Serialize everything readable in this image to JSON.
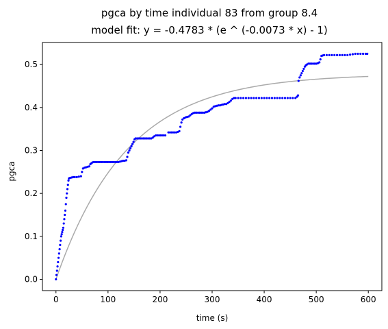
{
  "chart_data": {
    "type": "scatter",
    "title": "pgca by time individual 83 from group 8.4",
    "subtitle": "model fit: y = -0.4783 * (e ^ (-0.0073 * x) - 1)",
    "xlabel": "time (s)",
    "ylabel": "pgca",
    "xlim": [
      -26,
      626
    ],
    "ylim": [
      -0.0263,
      0.5513
    ],
    "xticks": [
      0,
      100,
      200,
      300,
      400,
      500,
      600
    ],
    "yticks": [
      0.0,
      0.1,
      0.2,
      0.3,
      0.4,
      0.5
    ],
    "xtick_labels": [
      "0",
      "100",
      "200",
      "300",
      "400",
      "500",
      "600"
    ],
    "ytick_labels": [
      "0.0",
      "0.1",
      "0.2",
      "0.3",
      "0.4",
      "0.5"
    ],
    "grid": false,
    "legend": "none",
    "series": [
      {
        "kind": "scatter",
        "color": "#0000ff",
        "points": [
          [
            0,
            0.0
          ],
          [
            1,
            0.01
          ],
          [
            2,
            0.02
          ],
          [
            3,
            0.03
          ],
          [
            4,
            0.04
          ],
          [
            5,
            0.05
          ],
          [
            6,
            0.06
          ],
          [
            7,
            0.07
          ],
          [
            8,
            0.08
          ],
          [
            9,
            0.09
          ],
          [
            10,
            0.1
          ],
          [
            11,
            0.105
          ],
          [
            12,
            0.11
          ],
          [
            13,
            0.115
          ],
          [
            14,
            0.12
          ],
          [
            15,
            0.13
          ],
          [
            16,
            0.14
          ],
          [
            17,
            0.15
          ],
          [
            18,
            0.16
          ],
          [
            19,
            0.175
          ],
          [
            20,
            0.19
          ],
          [
            21,
            0.2
          ],
          [
            22,
            0.21
          ],
          [
            23,
            0.22
          ],
          [
            24,
            0.23
          ],
          [
            25,
            0.235
          ],
          [
            27,
            0.236
          ],
          [
            30,
            0.237
          ],
          [
            33,
            0.238
          ],
          [
            36,
            0.238
          ],
          [
            40,
            0.238
          ],
          [
            44,
            0.239
          ],
          [
            48,
            0.24
          ],
          [
            50,
            0.25
          ],
          [
            52,
            0.258
          ],
          [
            55,
            0.26
          ],
          [
            58,
            0.261
          ],
          [
            61,
            0.262
          ],
          [
            64,
            0.263
          ],
          [
            66,
            0.268
          ],
          [
            68,
            0.27
          ],
          [
            70,
            0.272
          ],
          [
            72,
            0.273
          ],
          [
            75,
            0.273
          ],
          [
            78,
            0.273
          ],
          [
            81,
            0.273
          ],
          [
            84,
            0.273
          ],
          [
            87,
            0.273
          ],
          [
            90,
            0.273
          ],
          [
            93,
            0.273
          ],
          [
            96,
            0.273
          ],
          [
            99,
            0.273
          ],
          [
            102,
            0.273
          ],
          [
            105,
            0.273
          ],
          [
            108,
            0.273
          ],
          [
            111,
            0.273
          ],
          [
            114,
            0.273
          ],
          [
            117,
            0.273
          ],
          [
            120,
            0.273
          ],
          [
            123,
            0.274
          ],
          [
            126,
            0.275
          ],
          [
            129,
            0.276
          ],
          [
            132,
            0.276
          ],
          [
            135,
            0.277
          ],
          [
            137,
            0.285
          ],
          [
            139,
            0.295
          ],
          [
            141,
            0.3
          ],
          [
            143,
            0.305
          ],
          [
            145,
            0.31
          ],
          [
            147,
            0.315
          ],
          [
            149,
            0.32
          ],
          [
            151,
            0.326
          ],
          [
            153,
            0.328
          ],
          [
            156,
            0.328
          ],
          [
            159,
            0.328
          ],
          [
            162,
            0.328
          ],
          [
            165,
            0.328
          ],
          [
            168,
            0.328
          ],
          [
            171,
            0.328
          ],
          [
            174,
            0.328
          ],
          [
            177,
            0.328
          ],
          [
            180,
            0.328
          ],
          [
            183,
            0.328
          ],
          [
            186,
            0.33
          ],
          [
            189,
            0.333
          ],
          [
            192,
            0.335
          ],
          [
            195,
            0.335
          ],
          [
            198,
            0.335
          ],
          [
            201,
            0.335
          ],
          [
            204,
            0.335
          ],
          [
            207,
            0.335
          ],
          [
            210,
            0.335
          ],
          [
            216,
            0.342
          ],
          [
            219,
            0.342
          ],
          [
            222,
            0.342
          ],
          [
            225,
            0.342
          ],
          [
            228,
            0.342
          ],
          [
            231,
            0.342
          ],
          [
            234,
            0.343
          ],
          [
            237,
            0.345
          ],
          [
            239,
            0.355
          ],
          [
            241,
            0.365
          ],
          [
            243,
            0.372
          ],
          [
            246,
            0.375
          ],
          [
            249,
            0.377
          ],
          [
            252,
            0.378
          ],
          [
            255,
            0.379
          ],
          [
            258,
            0.382
          ],
          [
            261,
            0.385
          ],
          [
            264,
            0.387
          ],
          [
            267,
            0.388
          ],
          [
            270,
            0.388
          ],
          [
            273,
            0.388
          ],
          [
            276,
            0.388
          ],
          [
            279,
            0.388
          ],
          [
            282,
            0.388
          ],
          [
            285,
            0.388
          ],
          [
            288,
            0.389
          ],
          [
            291,
            0.39
          ],
          [
            294,
            0.392
          ],
          [
            297,
            0.395
          ],
          [
            300,
            0.398
          ],
          [
            303,
            0.402
          ],
          [
            306,
            0.403
          ],
          [
            309,
            0.404
          ],
          [
            312,
            0.405
          ],
          [
            315,
            0.405
          ],
          [
            318,
            0.406
          ],
          [
            321,
            0.407
          ],
          [
            324,
            0.408
          ],
          [
            327,
            0.408
          ],
          [
            330,
            0.41
          ],
          [
            333,
            0.413
          ],
          [
            336,
            0.416
          ],
          [
            339,
            0.42
          ],
          [
            342,
            0.422
          ],
          [
            345,
            0.422
          ],
          [
            350,
            0.422
          ],
          [
            355,
            0.422
          ],
          [
            360,
            0.422
          ],
          [
            365,
            0.422
          ],
          [
            370,
            0.422
          ],
          [
            375,
            0.422
          ],
          [
            380,
            0.422
          ],
          [
            385,
            0.422
          ],
          [
            390,
            0.422
          ],
          [
            395,
            0.422
          ],
          [
            400,
            0.422
          ],
          [
            405,
            0.422
          ],
          [
            410,
            0.422
          ],
          [
            415,
            0.422
          ],
          [
            420,
            0.422
          ],
          [
            425,
            0.422
          ],
          [
            430,
            0.422
          ],
          [
            435,
            0.422
          ],
          [
            440,
            0.422
          ],
          [
            445,
            0.422
          ],
          [
            450,
            0.422
          ],
          [
            455,
            0.422
          ],
          [
            460,
            0.422
          ],
          [
            463,
            0.425
          ],
          [
            465,
            0.428
          ],
          [
            466,
            0.462
          ],
          [
            468,
            0.47
          ],
          [
            470,
            0.475
          ],
          [
            472,
            0.48
          ],
          [
            474,
            0.485
          ],
          [
            476,
            0.49
          ],
          [
            478,
            0.495
          ],
          [
            480,
            0.498
          ],
          [
            482,
            0.5
          ],
          [
            485,
            0.502
          ],
          [
            488,
            0.502
          ],
          [
            491,
            0.502
          ],
          [
            494,
            0.502
          ],
          [
            497,
            0.502
          ],
          [
            500,
            0.502
          ],
          [
            503,
            0.503
          ],
          [
            506,
            0.505
          ],
          [
            508,
            0.512
          ],
          [
            510,
            0.52
          ],
          [
            512,
            0.521
          ],
          [
            515,
            0.522
          ],
          [
            520,
            0.522
          ],
          [
            525,
            0.522
          ],
          [
            530,
            0.522
          ],
          [
            535,
            0.522
          ],
          [
            540,
            0.522
          ],
          [
            545,
            0.522
          ],
          [
            550,
            0.522
          ],
          [
            555,
            0.522
          ],
          [
            560,
            0.522
          ],
          [
            565,
            0.523
          ],
          [
            570,
            0.524
          ],
          [
            575,
            0.525
          ],
          [
            580,
            0.525
          ],
          [
            585,
            0.525
          ],
          [
            590,
            0.525
          ],
          [
            595,
            0.525
          ],
          [
            598,
            0.525
          ]
        ]
      },
      {
        "kind": "line",
        "color": "#aaaaaa",
        "a": 0.4783,
        "b": 0.0073,
        "x_range": [
          0,
          600
        ]
      }
    ]
  }
}
